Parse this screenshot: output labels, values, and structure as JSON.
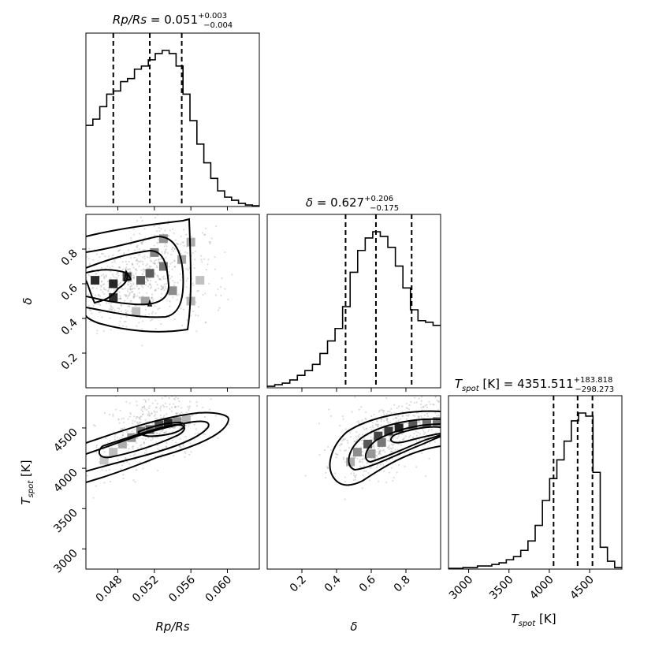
{
  "chart_data": {
    "type": "corner",
    "parameters": [
      {
        "key": "rp_rs",
        "label": "Rp/Rs",
        "range": [
          0.0445,
          0.0635
        ],
        "ticks": [
          0.048,
          0.052,
          0.056,
          0.06
        ],
        "tick_labels": [
          "0.048",
          "0.052",
          "0.056",
          "0.060"
        ],
        "title_main": "Rp/Rs = 0.051",
        "title_sup": "+0.003",
        "title_sub": "−0.004",
        "quantiles": [
          0.0475,
          0.0515,
          0.055
        ],
        "hist": [
          0.52,
          0.56,
          0.64,
          0.72,
          0.74,
          0.8,
          0.82,
          0.88,
          0.9,
          0.94,
          0.98,
          1.0,
          0.98,
          0.9,
          0.72,
          0.55,
          0.4,
          0.28,
          0.18,
          0.1,
          0.06,
          0.04,
          0.02,
          0.01,
          0.005
        ]
      },
      {
        "key": "delta",
        "label": "δ",
        "range": [
          0.0,
          1.0
        ],
        "ticks": [
          0.2,
          0.4,
          0.6,
          0.8
        ],
        "tick_labels": [
          "0.2",
          "0.4",
          "0.6",
          "0.8"
        ],
        "title_main": "δ = 0.627",
        "title_sup": "+0.206",
        "title_sub": "−0.175",
        "quantiles": [
          0.452,
          0.627,
          0.833
        ],
        "hist": [
          0.01,
          0.02,
          0.03,
          0.05,
          0.08,
          0.11,
          0.15,
          0.22,
          0.3,
          0.38,
          0.52,
          0.74,
          0.88,
          0.96,
          1.0,
          0.97,
          0.9,
          0.78,
          0.64,
          0.5,
          0.43,
          0.42,
          0.4
        ]
      },
      {
        "key": "t_spot",
        "label": "T",
        "label_sub": "spot",
        "label_unit": " [K]",
        "range": [
          2750,
          4900
        ],
        "ticks": [
          3000,
          3500,
          4000,
          4500
        ],
        "tick_labels": [
          "3000",
          "3500",
          "4000",
          "4500"
        ],
        "title_main": " [K] = 4351.511",
        "title_sup": "+183.818",
        "title_sub": "−298.273",
        "quantiles": [
          4053,
          4351,
          4535
        ],
        "hist": [
          0.005,
          0.005,
          0.01,
          0.01,
          0.02,
          0.02,
          0.03,
          0.04,
          0.06,
          0.08,
          0.12,
          0.18,
          0.28,
          0.44,
          0.58,
          0.7,
          0.82,
          0.95,
          1.0,
          0.98,
          0.62,
          0.14,
          0.05,
          0.01
        ]
      }
    ],
    "density_panels": [
      {
        "x": "rp_rs",
        "y": "delta",
        "cells": [
          [
            0.0455,
            0.62,
            0.92
          ],
          [
            0.0475,
            0.6,
            0.95
          ],
          [
            0.0475,
            0.52,
            0.9
          ],
          [
            0.049,
            0.64,
            0.75
          ],
          [
            0.0505,
            0.62,
            0.7
          ],
          [
            0.0515,
            0.66,
            0.68
          ],
          [
            0.053,
            0.7,
            0.55
          ],
          [
            0.052,
            0.78,
            0.5
          ],
          [
            0.054,
            0.56,
            0.45
          ],
          [
            0.053,
            0.86,
            0.42
          ],
          [
            0.055,
            0.74,
            0.35
          ],
          [
            0.051,
            0.5,
            0.35
          ],
          [
            0.056,
            0.84,
            0.3
          ],
          [
            0.056,
            0.5,
            0.25
          ],
          [
            0.05,
            0.44,
            0.22
          ],
          [
            0.057,
            0.62,
            0.2
          ]
        ]
      },
      {
        "x": "rp_rs",
        "y": "t_spot",
        "cells": [
          [
            0.0535,
            4560,
            0.95
          ],
          [
            0.0525,
            4540,
            0.75
          ],
          [
            0.0515,
            4480,
            0.6
          ],
          [
            0.0505,
            4460,
            0.55
          ],
          [
            0.0495,
            4380,
            0.4
          ],
          [
            0.0545,
            4580,
            0.45
          ],
          [
            0.0485,
            4300,
            0.3
          ],
          [
            0.0475,
            4200,
            0.22
          ],
          [
            0.0555,
            4600,
            0.25
          ],
          [
            0.0465,
            4100,
            0.18
          ]
        ]
      },
      {
        "x": "delta",
        "y": "t_spot",
        "cells": [
          [
            0.76,
            4500,
            0.95
          ],
          [
            0.7,
            4460,
            0.85
          ],
          [
            0.64,
            4400,
            0.8
          ],
          [
            0.58,
            4300,
            0.7
          ],
          [
            0.84,
            4540,
            0.7
          ],
          [
            0.92,
            4560,
            0.6
          ],
          [
            0.52,
            4200,
            0.45
          ],
          [
            0.48,
            4080,
            0.3
          ],
          [
            0.98,
            4580,
            0.55
          ],
          [
            0.6,
            4180,
            0.4
          ],
          [
            0.66,
            4320,
            0.55
          ]
        ]
      }
    ],
    "contour_color": "#000000",
    "hist_color": "#000000",
    "point_color": "#9a9a9a"
  }
}
